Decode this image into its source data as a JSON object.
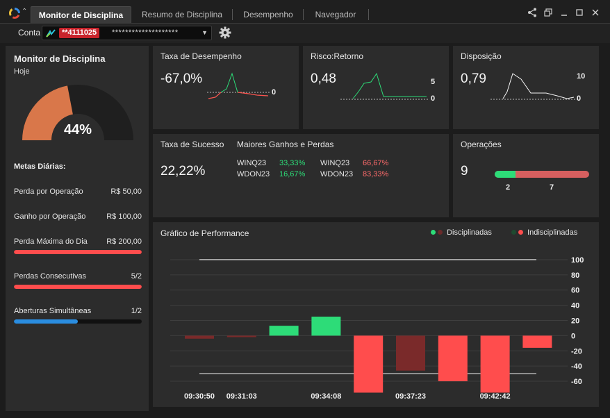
{
  "tabs": [
    {
      "label": "Monitor de Disciplina",
      "active": true
    },
    {
      "label": "Resumo de Disciplina"
    },
    {
      "label": "Desempenho"
    },
    {
      "label": "Navegador"
    }
  ],
  "window_controls": [
    "share-icon",
    "restore-icon",
    "minimize-icon",
    "maximize-icon",
    "close-icon"
  ],
  "account": {
    "label": "Conta",
    "number": "**4111025",
    "masked": "********************"
  },
  "left": {
    "title": "Monitor de Disciplina",
    "subtitle": "Hoje",
    "gauge_value": "44%",
    "gauge_fraction": 0.44,
    "metas_title": "Metas Diárias:",
    "rows": [
      {
        "label": "Perda por Operação",
        "value": "R$ 50,00"
      },
      {
        "label": "Ganho por Operação",
        "value": "R$ 100,00"
      },
      {
        "label": "Perda Máxima do Dia",
        "value": "R$ 200,00",
        "bar": 1.0,
        "color": "#ff4d4d"
      },
      {
        "label": "Perdas Consecutivas",
        "value": "5/2",
        "bar": 1.0,
        "color": "#ff4d4d"
      },
      {
        "label": "Aberturas Simultâneas",
        "value": "1/2",
        "bar": 0.5,
        "color": "#2a8de0"
      }
    ]
  },
  "cards": {
    "taxa_desempenho": {
      "title": "Taxa de Desempenho",
      "value": "-67,0%",
      "ref": "0"
    },
    "risco_retorno": {
      "title": "Risco:Retorno",
      "value": "0,48",
      "top": "5",
      "ref": "0"
    },
    "disposicao": {
      "title": "Disposição",
      "value": "0,79",
      "top": "10",
      "ref": "0"
    },
    "taxa_sucesso": {
      "title": "Taxa de Sucesso",
      "value": "22,22%"
    },
    "maiores": {
      "title": "Maiores Ganhos e Perdas",
      "gains": [
        {
          "asset": "WINQ23",
          "pct": "33,33%"
        },
        {
          "asset": "WDON23",
          "pct": "16,67%"
        }
      ],
      "losses": [
        {
          "asset": "WINQ23",
          "pct": "66,67%"
        },
        {
          "asset": "WDON23",
          "pct": "83,33%"
        }
      ]
    },
    "operacoes": {
      "title": "Operações",
      "value": "9",
      "good": "2",
      "bad": "7",
      "good_fraction": 0.22
    }
  },
  "colors": {
    "green": "#2ddc78",
    "red": "#ff4d4d",
    "dark_red": "#7a2a2a",
    "blue": "#2a8de0",
    "gauge": "#d9774a"
  },
  "chart_data": {
    "type": "bar",
    "title": "Gráfico de Performance",
    "legend": [
      "Disciplinadas",
      "Indisciplinadas"
    ],
    "legend_placement": "top-right",
    "ylim": [
      -70,
      110
    ],
    "yticks": [
      100,
      80,
      60,
      40,
      20,
      0,
      -20,
      -40,
      -60
    ],
    "ref_lines": [
      100,
      -50
    ],
    "xlabels": [
      "09:30:50",
      "09:31:03",
      "",
      "09:34:08",
      "",
      "09:37:23",
      "",
      "09:42:42",
      ""
    ],
    "bars": [
      {
        "value": -4,
        "kind": "dark"
      },
      {
        "value": -2,
        "kind": "dark"
      },
      {
        "value": 13,
        "kind": "green"
      },
      {
        "value": 25,
        "kind": "green"
      },
      {
        "value": -75,
        "kind": "red"
      },
      {
        "value": -46,
        "kind": "dark"
      },
      {
        "value": -60,
        "kind": "red"
      },
      {
        "value": -75,
        "kind": "red"
      },
      {
        "value": -16,
        "kind": "red"
      }
    ]
  }
}
